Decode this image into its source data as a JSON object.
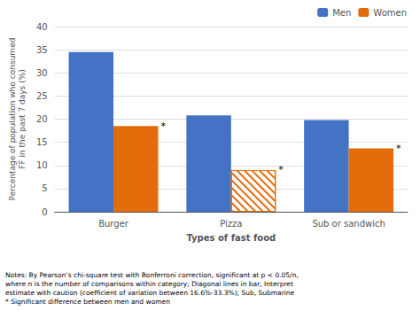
{
  "chart_data": {
    "type": "bar",
    "categories": [
      "Burger",
      "Pizza",
      "Sub or sandwich"
    ],
    "series": [
      {
        "name": "Men",
        "color": "#4472C4",
        "values": [
          34.5,
          20.8,
          19.8
        ]
      },
      {
        "name": "Women",
        "color": "#E36C0A",
        "values": [
          18.5,
          9.0,
          13.7
        ],
        "caution": [
          false,
          true,
          false
        ]
      }
    ],
    "xlabel": "Types of fast food",
    "ylabel": "Percentage of population who consumed\nFF in the past 7 days (%)",
    "ylim": [
      0,
      40
    ],
    "yticks": [
      0,
      5,
      10,
      15,
      20,
      25,
      30,
      35,
      40
    ],
    "grid": true,
    "legend": "upper right",
    "annotations": [
      {
        "text": "*",
        "category": "Burger",
        "series": "Women"
      },
      {
        "text": "*",
        "category": "Pizza",
        "series": "Women"
      },
      {
        "text": "*",
        "category": "Sub or sandwich",
        "series": "Women"
      },
      {
        "text": "Notes: By Pearson’s chi-square test with Bonferroni correction, significant at p < 0.05/n,\nwhere n is the number of comparisons within category; Diagonal lines in bar, Interpret\nestimate with caution (coefficient of variation between 16.6%-33.3%); Sub, Submarine\n* Significant difference between men and women"
      }
    ]
  }
}
